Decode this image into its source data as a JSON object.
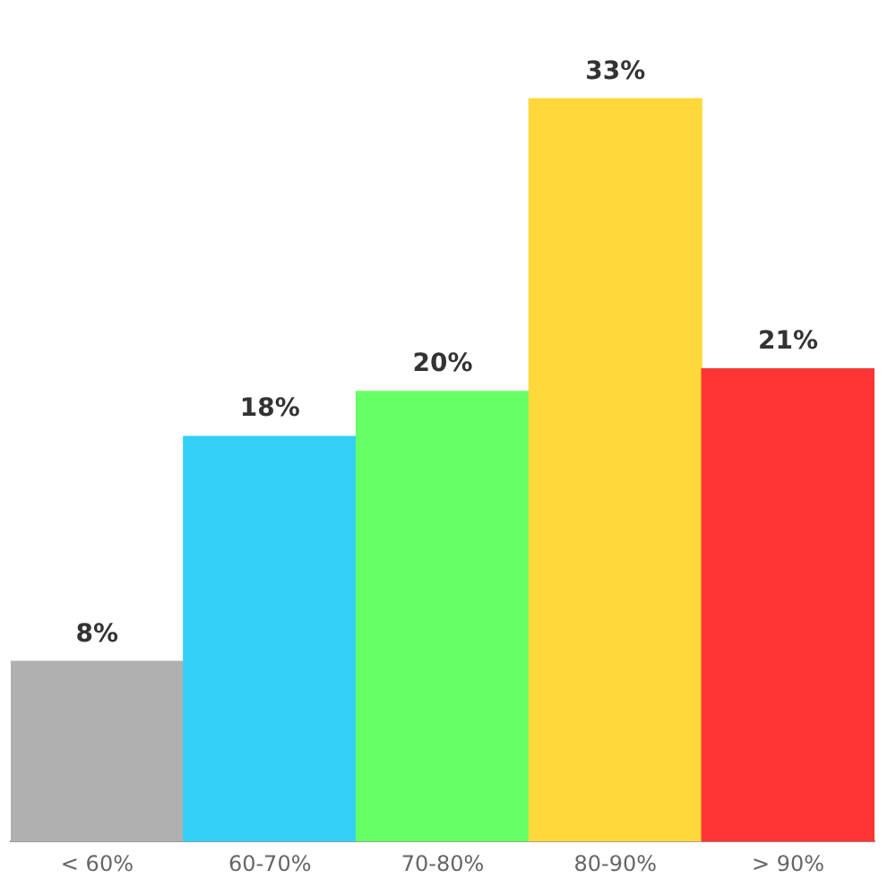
{
  "chart_data": {
    "type": "bar",
    "categories": [
      "< 60%",
      "60-70%",
      "70-80%",
      "80-90%",
      "> 90%"
    ],
    "values": [
      8,
      18,
      20,
      33,
      21
    ],
    "colors": [
      "#b0b0b0",
      "#33cff7",
      "#66ff66",
      "#ffd83a",
      "#ff3535"
    ],
    "value_labels": [
      "8%",
      "18%",
      "20%",
      "33%",
      "21%"
    ],
    "grid": false,
    "legend": false
  }
}
